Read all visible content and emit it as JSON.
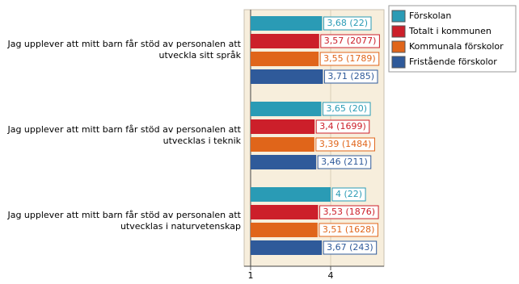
{
  "chart_data": {
    "type": "bar",
    "orientation": "horizontal",
    "categories": [
      "Jag upplever att mitt barn får stöd av personalen att utveckla sitt språk",
      "Jag upplever att mitt barn får stöd av personalen att utvecklas i teknik",
      "Jag upplever att mitt barn får stöd av personalen att utvecklas i naturvetenskap"
    ],
    "series": [
      {
        "name": "Förskolan",
        "color": "#2a9bb5",
        "values": [
          3.68,
          3.65,
          4
        ],
        "value_labels": [
          "3,68 (22)",
          "3,65 (20)",
          "4 (22)"
        ]
      },
      {
        "name": "Totalt i kommunen",
        "color": "#cc1f2a",
        "values": [
          3.57,
          3.4,
          3.53
        ],
        "value_labels": [
          "3,57 (2077)",
          "3,4 (1699)",
          "3,53 (1876)"
        ]
      },
      {
        "name": "Kommunala förskolor",
        "color": "#e0651a",
        "values": [
          3.55,
          3.39,
          3.51
        ],
        "value_labels": [
          "3,55 (1789)",
          "3,39 (1484)",
          "3,51 (1628)"
        ]
      },
      {
        "name": "Fristående förskolor",
        "color": "#2f5a9a",
        "values": [
          3.71,
          3.46,
          3.67
        ],
        "value_labels": [
          "3,71 (285)",
          "3,46 (211)",
          "3,67 (243)"
        ]
      }
    ],
    "xlim": [
      1,
      6
    ],
    "xticks": [
      1,
      4
    ],
    "grid": true,
    "legend": "top-right"
  }
}
